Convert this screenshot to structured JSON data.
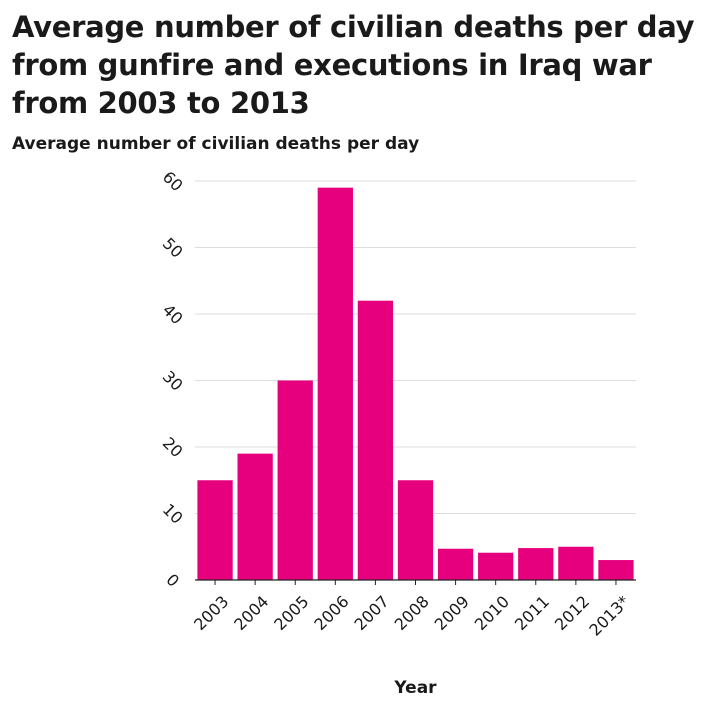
{
  "chart_data": {
    "type": "bar",
    "title": "Average number of civilian deaths per day from gunfire and executions in Iraq war from 2003 to 2013",
    "ylabel": "Average number of civilian deaths per day",
    "xlabel": "Year",
    "categories": [
      "2003",
      "2004",
      "2005",
      "2006",
      "2007",
      "2008",
      "2009",
      "2010",
      "2011",
      "2012",
      "2013*"
    ],
    "values": [
      15,
      19,
      30,
      59,
      42,
      15,
      4.7,
      4.1,
      4.8,
      5,
      3
    ],
    "ylim": [
      0,
      60
    ],
    "yticks": [
      0,
      10,
      20,
      30,
      40,
      50,
      60
    ],
    "grid": true,
    "bar_color": "#e6007e",
    "grid_color": "#dddddd"
  }
}
